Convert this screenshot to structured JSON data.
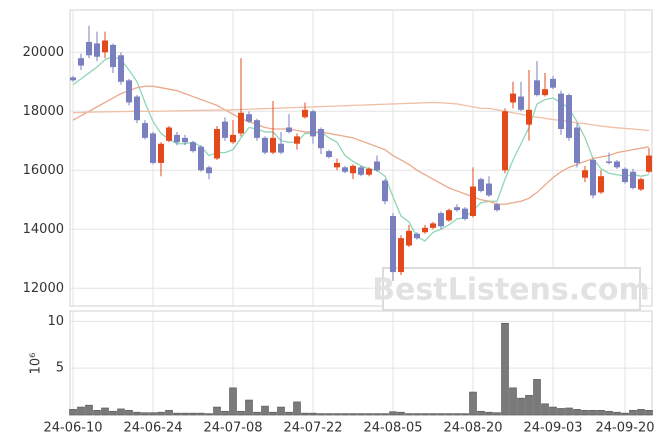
{
  "chart_data": [
    {
      "type": "candlestick",
      "up_color": "#e4491c",
      "down_color": "#7a7fbf",
      "ylim": [
        11400,
        21400
      ],
      "yticks": [
        12000,
        14000,
        16000,
        18000,
        20000
      ],
      "grid": true,
      "watermark": "BestListens.com",
      "open": [
        19150,
        19800,
        20350,
        20300,
        20000,
        20250,
        19900,
        19050,
        18500,
        17600,
        17250,
        16250,
        17000,
        17200,
        17100,
        16950,
        16800,
        16100,
        16400,
        17650,
        16950,
        17250,
        17900,
        17700,
        17100,
        16600,
        16900,
        17450,
        16900,
        17800,
        18000,
        17400,
        16650,
        16100,
        16100,
        15900,
        16100,
        15850,
        16300,
        15650,
        14450,
        12550,
        13450,
        13850,
        13900,
        14050,
        14550,
        14300,
        14750,
        14700,
        14450,
        15700,
        15550,
        14850,
        16000,
        18300,
        18500,
        17550,
        19050,
        18550,
        19100,
        18600,
        18550,
        17450,
        15750,
        16350,
        15250,
        16300,
        16300,
        16050,
        15950,
        15350,
        15950
      ],
      "high": [
        19200,
        19950,
        20900,
        20700,
        20700,
        20300,
        20000,
        19100,
        18550,
        17700,
        17300,
        16950,
        17500,
        17300,
        17200,
        17000,
        16850,
        16150,
        17500,
        17800,
        17700,
        19800,
        18000,
        17750,
        17150,
        18350,
        17300,
        17900,
        17250,
        18300,
        18050,
        17450,
        16700,
        16400,
        16150,
        16200,
        16150,
        16100,
        16500,
        15700,
        14550,
        13800,
        14150,
        13900,
        14150,
        14250,
        14600,
        14700,
        14850,
        14750,
        16100,
        15750,
        15800,
        14900,
        18100,
        19000,
        19000,
        19400,
        19700,
        19300,
        19200,
        18700,
        18600,
        17600,
        16150,
        16400,
        16000,
        16600,
        16350,
        16100,
        16050,
        15750,
        16750
      ],
      "low": [
        19000,
        19400,
        19800,
        19700,
        19800,
        19300,
        18900,
        18200,
        17600,
        17050,
        16200,
        15800,
        16950,
        16850,
        16850,
        16600,
        15950,
        15700,
        16350,
        17000,
        16900,
        17150,
        17600,
        17000,
        16550,
        16550,
        16550,
        17250,
        16700,
        17750,
        16900,
        16550,
        16400,
        16000,
        15900,
        15700,
        15800,
        15800,
        15950,
        14850,
        12250,
        12450,
        13400,
        13650,
        13850,
        14000,
        14000,
        14250,
        14600,
        14300,
        14400,
        15250,
        15100,
        14600,
        15900,
        18100,
        18000,
        17000,
        18500,
        18500,
        18750,
        17200,
        17000,
        16100,
        15600,
        15050,
        15200,
        16200,
        16050,
        15550,
        15350,
        15300,
        15900
      ],
      "close": [
        19050,
        19550,
        19900,
        19850,
        20400,
        19500,
        19000,
        18300,
        17700,
        17100,
        16250,
        16900,
        17450,
        16950,
        16950,
        16650,
        16000,
        15900,
        17400,
        17100,
        17200,
        17950,
        17650,
        17100,
        16600,
        17100,
        16600,
        17300,
        17150,
        18050,
        17150,
        16750,
        16450,
        16250,
        15950,
        16150,
        15850,
        16050,
        16000,
        14950,
        12550,
        13700,
        13950,
        13700,
        14050,
        14200,
        14100,
        14650,
        14650,
        14350,
        15450,
        15300,
        15150,
        14650,
        18000,
        18600,
        18050,
        18050,
        18550,
        18750,
        18800,
        17400,
        17100,
        16250,
        16000,
        15150,
        15800,
        16250,
        16100,
        15600,
        15400,
        15700,
        16500
      ],
      "series": [
        {
          "color": "#8fd6b6",
          "values": [
            18900,
            19100,
            19300,
            19500,
            19750,
            19850,
            19750,
            19400,
            19000,
            18300,
            17650,
            17250,
            17050,
            16900,
            16900,
            16950,
            16800,
            16500,
            16600,
            16600,
            16700,
            17100,
            17450,
            17400,
            17300,
            17300,
            17000,
            16950,
            16950,
            17250,
            17250,
            17300,
            17100,
            16950,
            16500,
            16300,
            16150,
            16050,
            16000,
            15800,
            15100,
            14450,
            14250,
            13750,
            13600,
            13900,
            14000,
            14150,
            14350,
            14400,
            14650,
            14900,
            14950,
            14950,
            15700,
            16350,
            16900,
            17450,
            18250,
            18400,
            18450,
            18300,
            18100,
            17650,
            17100,
            16400,
            16050,
            15900,
            15850,
            15800,
            15850,
            15800,
            15850
          ]
        },
        {
          "color": "#e9a98a",
          "values": [
            17700,
            17850,
            18000,
            18150,
            18300,
            18450,
            18600,
            18700,
            18800,
            18850,
            18850,
            18800,
            18750,
            18700,
            18600,
            18500,
            18400,
            18300,
            18200,
            18050,
            17900,
            17750,
            17650,
            17550,
            17450,
            17400,
            17400,
            17400,
            17350,
            17300,
            17300,
            17300,
            17250,
            17200,
            17150,
            17100,
            17000,
            16900,
            16800,
            16700,
            16500,
            16350,
            16200,
            16000,
            15850,
            15700,
            15550,
            15400,
            15300,
            15200,
            15100,
            15000,
            14950,
            14850,
            14850,
            14900,
            14950,
            15050,
            15250,
            15500,
            15750,
            15950,
            16100,
            16200,
            16300,
            16400,
            16450,
            16500,
            16600,
            16650,
            16700,
            16750,
            16800
          ]
        },
        {
          "color": "#efbfa6",
          "values": [
            17950,
            17960,
            17970,
            17975,
            17980,
            17985,
            17990,
            17995,
            18000,
            18000,
            18000,
            18005,
            18010,
            18015,
            18020,
            18025,
            18030,
            18035,
            18040,
            18045,
            18050,
            18060,
            18070,
            18080,
            18090,
            18100,
            18110,
            18120,
            18130,
            18140,
            18150,
            18160,
            18170,
            18180,
            18190,
            18200,
            18210,
            18220,
            18230,
            18240,
            18250,
            18260,
            18270,
            18280,
            18290,
            18300,
            18290,
            18270,
            18250,
            18200,
            18150,
            18100,
            18100,
            18050,
            18000,
            17950,
            17900,
            17850,
            17800,
            17760,
            17720,
            17690,
            17650,
            17610,
            17580,
            17540,
            17500,
            17470,
            17440,
            17420,
            17400,
            17370,
            17350
          ]
        }
      ]
    },
    {
      "type": "bar",
      "color": "#7a7a7a",
      "ylim": [
        0,
        11
      ],
      "yticks": [
        5,
        10
      ],
      "ylabel": "10⁶",
      "grid": true,
      "categories": [
        "24-06-10",
        null,
        null,
        null,
        null,
        null,
        null,
        null,
        null,
        null,
        "24-06-24",
        null,
        null,
        null,
        null,
        null,
        null,
        null,
        null,
        null,
        "24-07-08",
        null,
        null,
        null,
        null,
        null,
        null,
        null,
        null,
        null,
        "24-07-22",
        null,
        null,
        null,
        null,
        null,
        null,
        null,
        null,
        null,
        "24-08-05",
        null,
        null,
        null,
        null,
        null,
        null,
        null,
        null,
        null,
        "24-08-20",
        null,
        null,
        null,
        null,
        null,
        null,
        null,
        null,
        null,
        "24-09-03",
        null,
        null,
        null,
        null,
        null,
        null,
        null,
        null,
        "24-09-20",
        null,
        null,
        null
      ],
      "values": [
        0.6,
        0.85,
        1.05,
        0.5,
        0.75,
        0.4,
        0.65,
        0.5,
        0.3,
        0.25,
        0.25,
        0.3,
        0.5,
        0.2,
        0.2,
        0.2,
        0.2,
        0.15,
        0.85,
        0.4,
        2.9,
        0.4,
        1.6,
        0.3,
        0.95,
        0.3,
        0.85,
        0.3,
        1.4,
        0.2,
        0.2,
        0.15,
        0.15,
        0.15,
        0.15,
        0.15,
        0.15,
        0.15,
        0.15,
        0.15,
        0.35,
        0.3,
        0.15,
        0.15,
        0.15,
        0.15,
        0.15,
        0.15,
        0.15,
        0.15,
        2.45,
        0.4,
        0.3,
        0.25,
        9.8,
        2.9,
        1.8,
        2.1,
        3.8,
        1.2,
        0.85,
        0.7,
        0.75,
        0.6,
        0.5,
        0.5,
        0.5,
        0.4,
        0.3,
        0.2,
        0.5,
        0.6,
        0.5
      ]
    }
  ]
}
